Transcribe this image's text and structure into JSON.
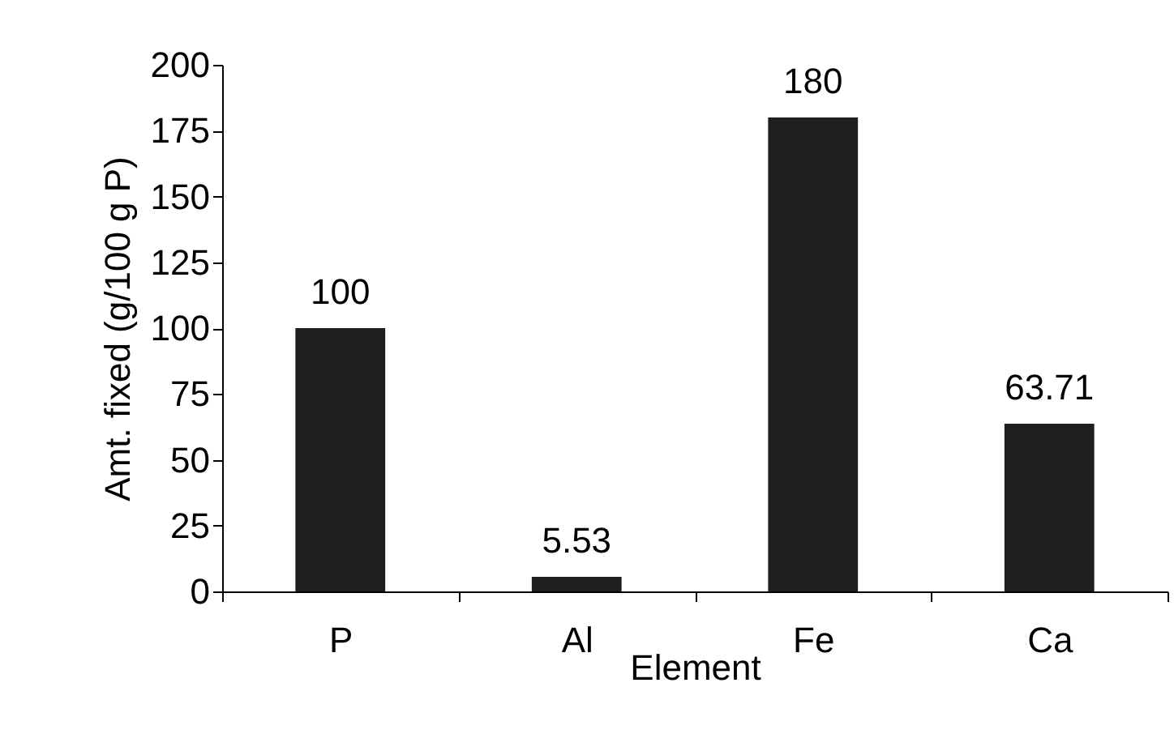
{
  "chart_data": {
    "type": "bar",
    "xlabel": "Element",
    "ylabel": "Amt. fixed (g/100 g P)",
    "categories": [
      "P",
      "Al",
      "Fe",
      "Ca"
    ],
    "values": [
      100,
      5.53,
      180,
      63.71
    ],
    "color": "#1e1e1e",
    "ylim": [
      0,
      200
    ],
    "yticks": [
      0,
      25,
      50,
      75,
      100,
      125,
      150,
      175,
      200
    ],
    "grid": false,
    "data_labels": true
  }
}
